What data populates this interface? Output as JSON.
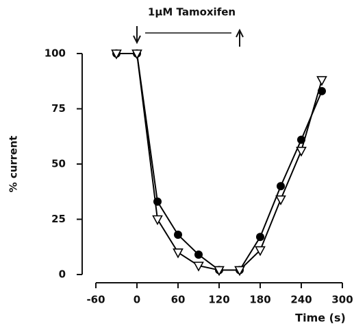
{
  "chart_data": {
    "type": "line",
    "annotation": "1μM Tamoxifen",
    "x_label": "Time (s)",
    "y_label": "% current",
    "x": [
      -30,
      0,
      30,
      60,
      90,
      120,
      150,
      180,
      210,
      240,
      270
    ],
    "series": [
      {
        "color": "#000000",
        "marker": "circle",
        "values": [
          100,
          100,
          33,
          18,
          9,
          2,
          2,
          17,
          40,
          61,
          83
        ]
      },
      {
        "color": "#000000",
        "marker": "triangle-down",
        "values": [
          100,
          100,
          25,
          10,
          4,
          2,
          2,
          11,
          34,
          56,
          88
        ]
      }
    ],
    "xlim": [
      -60,
      300
    ],
    "xticks": [
      -60,
      0,
      60,
      120,
      180,
      240,
      300
    ],
    "ylim": [
      0,
      100
    ],
    "yticks": [
      0,
      25,
      50,
      75,
      100
    ]
  }
}
